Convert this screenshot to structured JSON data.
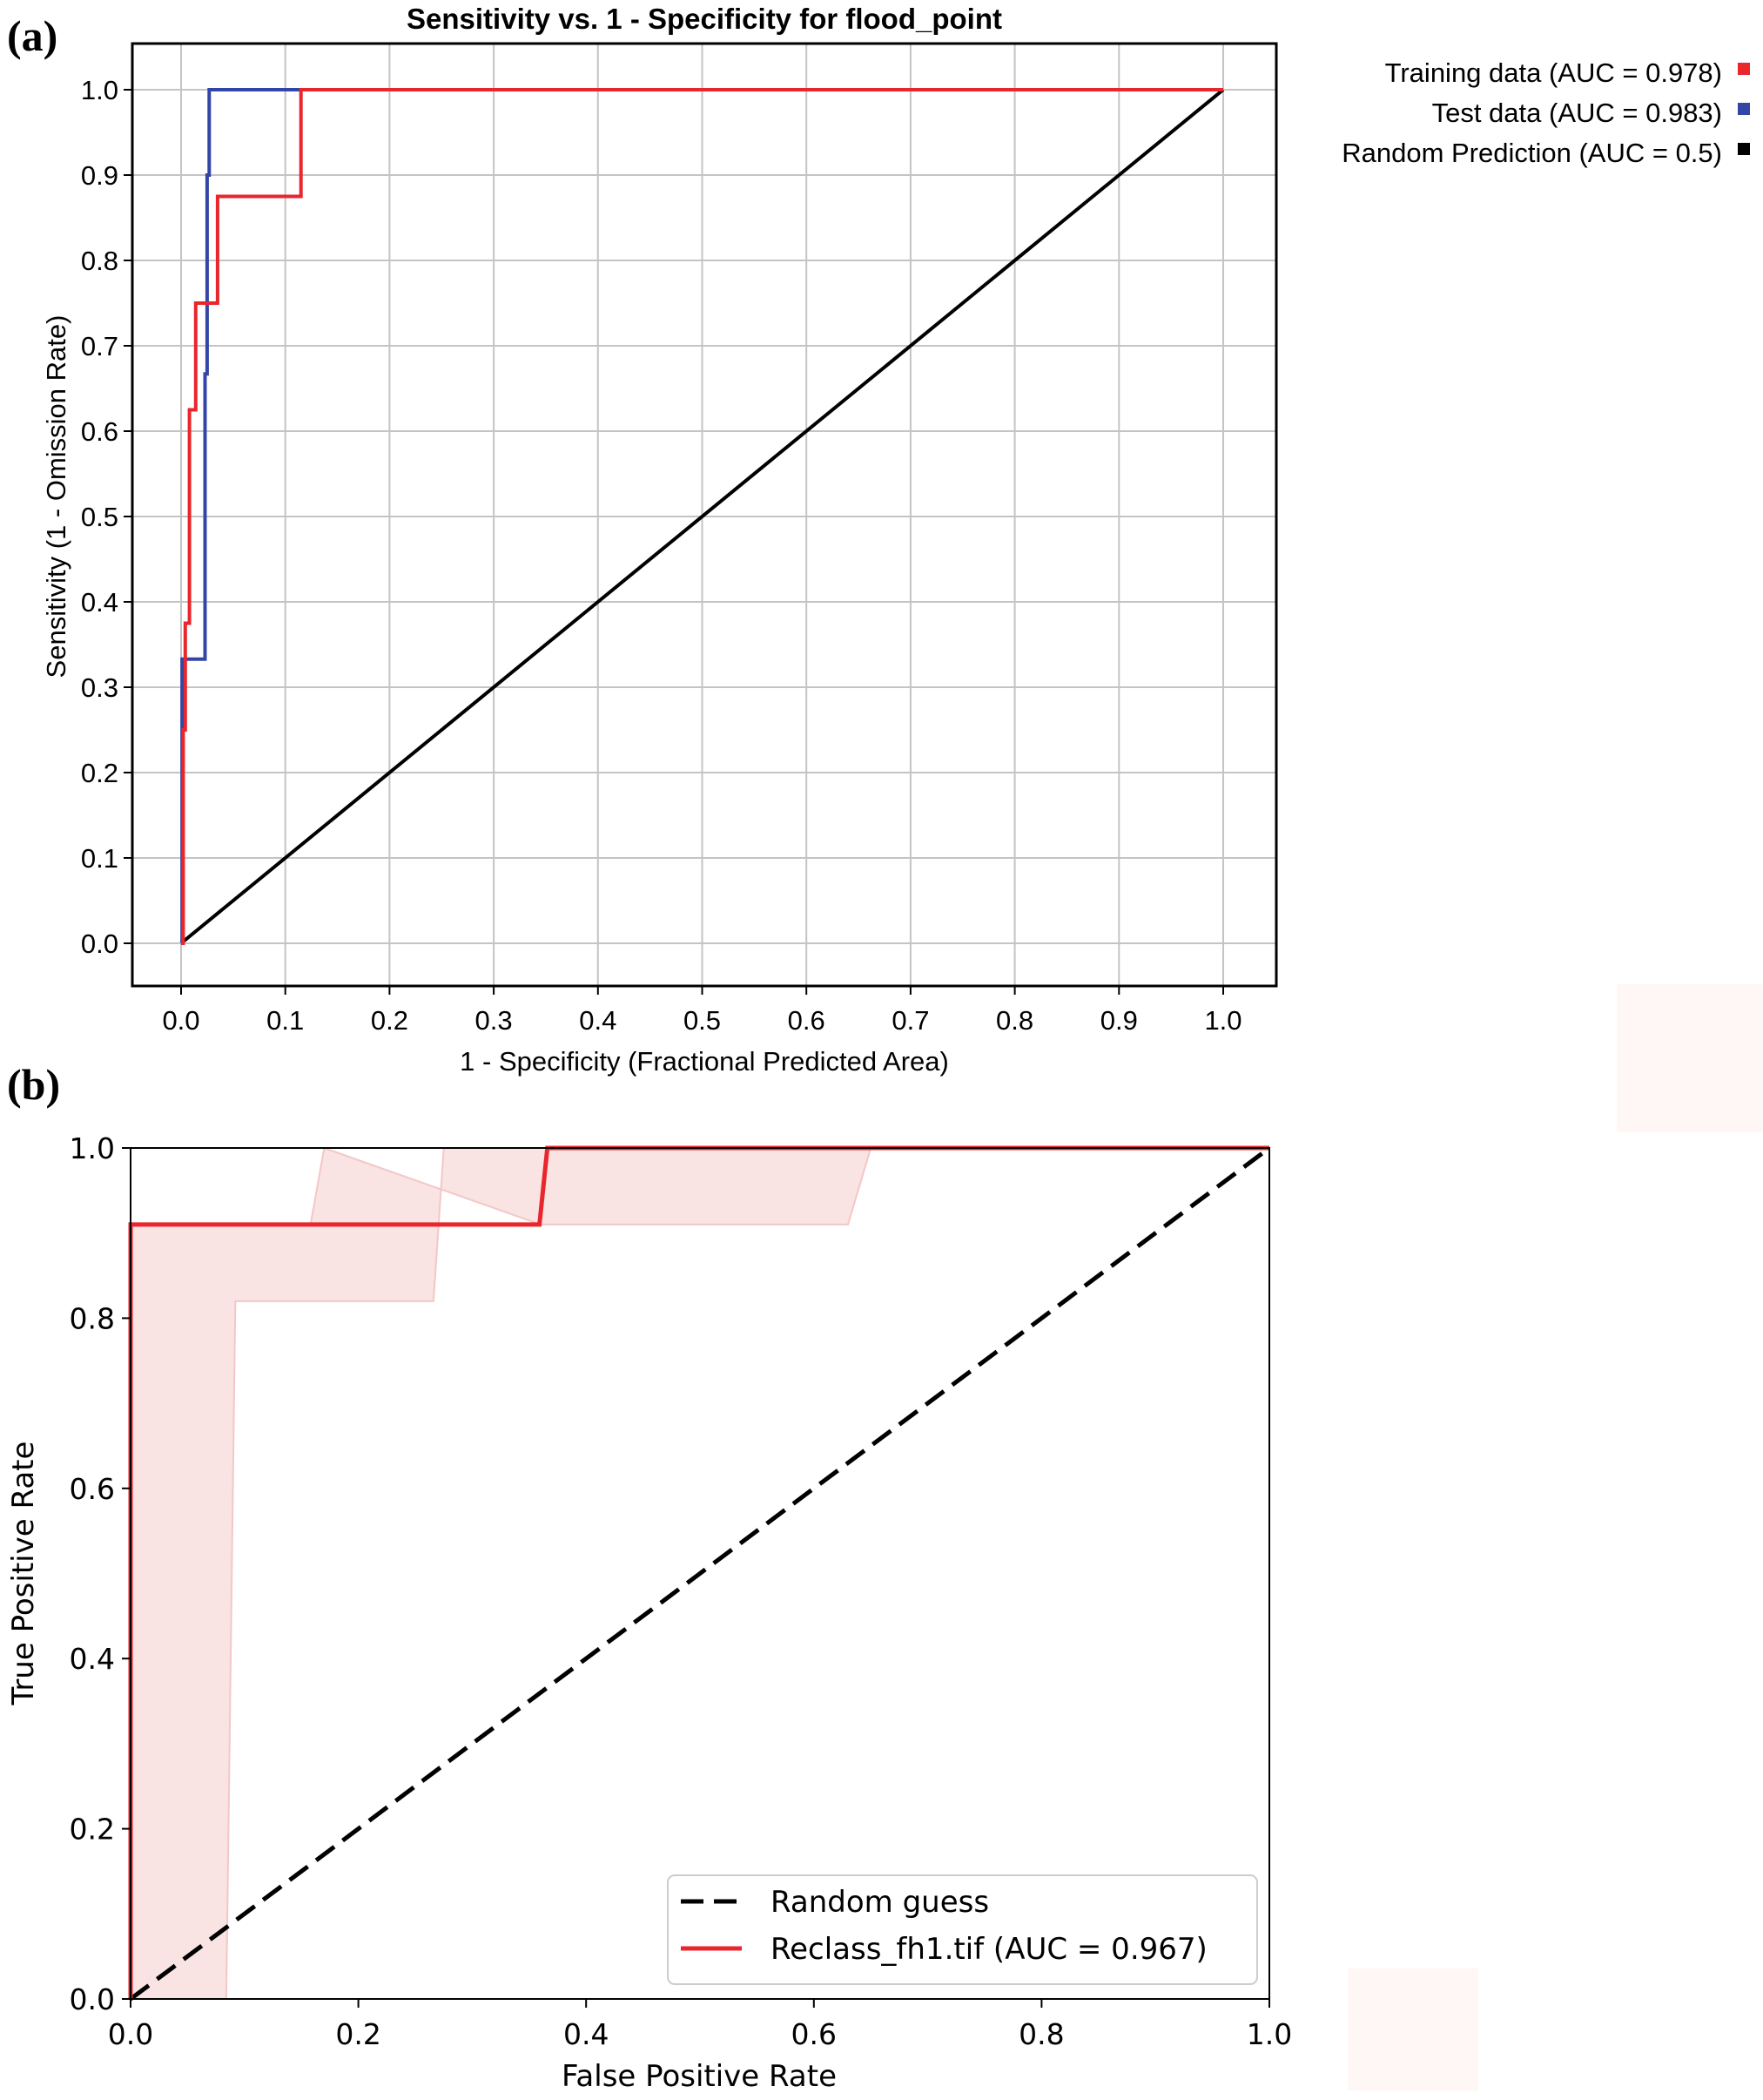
{
  "chart_data": [
    {
      "panel_label": "(a)",
      "type": "line",
      "title": "Sensitivity vs. 1 - Specificity for flood_point",
      "xlabel": "1 - Specificity  (Fractional Predicted Area)",
      "ylabel": "Sensitivity  (1 - Omission Rate)",
      "xlim": [
        0,
        1
      ],
      "ylim": [
        0,
        1
      ],
      "grid": true,
      "x_ticks": [
        "0.0",
        "0.1",
        "0.2",
        "0.3",
        "0.4",
        "0.5",
        "0.6",
        "0.7",
        "0.8",
        "0.9",
        "1.0"
      ],
      "y_ticks": [
        "0.0",
        "0.1",
        "0.2",
        "0.3",
        "0.4",
        "0.5",
        "0.6",
        "0.7",
        "0.8",
        "0.9",
        "1.0"
      ],
      "legend_position": "right of plot, top",
      "series": [
        {
          "name": "Training data (AUC = 0.978)",
          "color": "#e8262c",
          "x": [
            0,
            0.002,
            0.002,
            0.004,
            0.004,
            0.008,
            0.008,
            0.014,
            0.014,
            0.024,
            0.024,
            0.035,
            0.035,
            0.05,
            0.085,
            0.115,
            0.115,
            1.0
          ],
          "y": [
            0,
            0,
            0.25,
            0.25,
            0.375,
            0.375,
            0.625,
            0.625,
            0.75,
            0.75,
            0.75,
            0.75,
            0.875,
            0.875,
            0.875,
            0.875,
            1.0,
            1.0
          ]
        },
        {
          "name": "Test data (AUC = 0.983)",
          "color": "#3346a6",
          "x": [
            0,
            0.001,
            0.001,
            0.023,
            0.023,
            0.025,
            0.025,
            0.027,
            0.027,
            1.0
          ],
          "y": [
            0,
            0,
            0.333,
            0.333,
            0.667,
            0.667,
            0.9,
            0.9,
            1.0,
            1.0
          ]
        },
        {
          "name": "Random Prediction (AUC = 0.5)",
          "color": "#000000",
          "x": [
            0,
            1
          ],
          "y": [
            0,
            1
          ]
        }
      ]
    },
    {
      "panel_label": "(b)",
      "type": "line",
      "title": "",
      "xlabel": "False Positive Rate",
      "ylabel": "True Positive Rate",
      "xlim": [
        0,
        1
      ],
      "ylim": [
        0,
        1
      ],
      "grid": false,
      "x_ticks": [
        "0.0",
        "0.2",
        "0.4",
        "0.6",
        "0.8",
        "1.0"
      ],
      "y_ticks": [
        "0.0",
        "0.2",
        "0.4",
        "0.6",
        "0.8",
        "1.0"
      ],
      "legend_position": "lower right",
      "series": [
        {
          "name": "Random guess",
          "color": "#000000",
          "style": "dashed",
          "x": [
            0,
            1
          ],
          "y": [
            0,
            1
          ]
        },
        {
          "name": "Reclass_fh1.tif (AUC = 0.967)",
          "color": "#e8262c",
          "style": "solid",
          "x": [
            0,
            0,
            0.359,
            0.366,
            1.0
          ],
          "y": [
            0,
            0.91,
            0.91,
            1.0,
            1.0
          ]
        }
      ],
      "confidence_band": {
        "color": "#f4c7c7",
        "x": [
          0,
          0.084,
          0.092,
          0.266,
          0.275,
          0.65,
          0.63,
          0.36,
          0.17,
          0.158,
          0,
          0
        ],
        "y": [
          0,
          0,
          0.82,
          0.82,
          1.0,
          1.0,
          0.91,
          0.91,
          1.0,
          0.91,
          0.91,
          0
        ]
      }
    }
  ]
}
